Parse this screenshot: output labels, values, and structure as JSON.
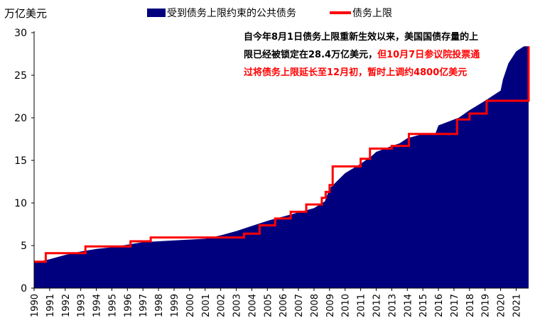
{
  "unit_label": "万亿美元",
  "legend": {
    "area_label": "受到债务上限约束的公共债务",
    "line_label": "债务上限"
  },
  "annotation": {
    "black_text": "自今年8月1日债务上限重新生效以来，美国国债存量的上限已经被锁定在28.4万亿美元，",
    "red_text": "但10月7日参议院投票通过将债务上限延长至12月初，暂时上调约4800亿美元"
  },
  "colors": {
    "area": "#00007f",
    "line": "#ff0000"
  },
  "chart_data": {
    "type": "area",
    "title": "",
    "xlabel": "",
    "ylabel": "万亿美元",
    "ylim": [
      0,
      30
    ],
    "xlim": [
      1990,
      2021.8
    ],
    "yticks": [
      "0",
      "5",
      "10",
      "15",
      "20",
      "25",
      "30"
    ],
    "xticks": [
      "1990",
      "1991",
      "1992",
      "1993",
      "1994",
      "1995",
      "1996",
      "1997",
      "1998",
      "1999",
      "2000",
      "2001",
      "2002",
      "2003",
      "2004",
      "2005",
      "2006",
      "2007",
      "2008",
      "2009",
      "2010",
      "2011",
      "2012",
      "2013",
      "2014",
      "2015",
      "2016",
      "2017",
      "2018",
      "2019",
      "2020",
      "2021"
    ],
    "series": [
      {
        "name": "受到债务上限约束的公共债务",
        "type": "area",
        "x": [
          1990,
          1991,
          1992,
          1993,
          1994,
          1995,
          1996,
          1997,
          1998,
          1999,
          2000,
          2001,
          2002,
          2003,
          2004,
          2005,
          2006,
          2007,
          2008,
          2008.7,
          2009,
          2010,
          2011,
          2011.7,
          2012,
          2013,
          2013.5,
          2014,
          2015,
          2015.8,
          2016,
          2017,
          2017.3,
          2018,
          2019,
          2019.5,
          2020,
          2020.15,
          2020.5,
          2021,
          2021.5,
          2021.8
        ],
        "y": [
          3.0,
          3.4,
          3.9,
          4.3,
          4.6,
          4.8,
          5.1,
          5.4,
          5.5,
          5.6,
          5.7,
          5.8,
          6.2,
          6.7,
          7.3,
          7.9,
          8.4,
          8.9,
          9.4,
          10.2,
          11.7,
          13.5,
          14.6,
          15.5,
          16.0,
          16.7,
          17.0,
          17.6,
          18.1,
          18.1,
          19.1,
          19.8,
          20.0,
          20.9,
          22.0,
          22.6,
          23.2,
          24.5,
          26.4,
          27.8,
          28.4,
          28.4
        ]
      },
      {
        "name": "债务上限",
        "type": "line-step",
        "x": [
          1990,
          1990.5,
          1990.75,
          1993.0,
          1993.3,
          1996.2,
          1997.5,
          2002.5,
          2003.5,
          2004.5,
          2005.5,
          2006.5,
          2007.5,
          2008.5,
          2008.75,
          2009.0,
          2009.2,
          2010.0,
          2011.0,
          2011.6,
          2012.0,
          2013.0,
          2014.1,
          2015.8,
          2017.2,
          2018.0,
          2019.1,
          2021.6,
          2021.8
        ],
        "y": [
          3.1,
          3.1,
          4.1,
          4.1,
          4.9,
          5.5,
          5.95,
          5.95,
          6.4,
          7.38,
          8.18,
          8.97,
          9.82,
          10.6,
          11.3,
          12.1,
          14.29,
          14.29,
          15.19,
          16.39,
          16.39,
          16.7,
          18.1,
          18.1,
          19.8,
          20.5,
          22.0,
          22.0,
          28.4
        ]
      }
    ]
  }
}
